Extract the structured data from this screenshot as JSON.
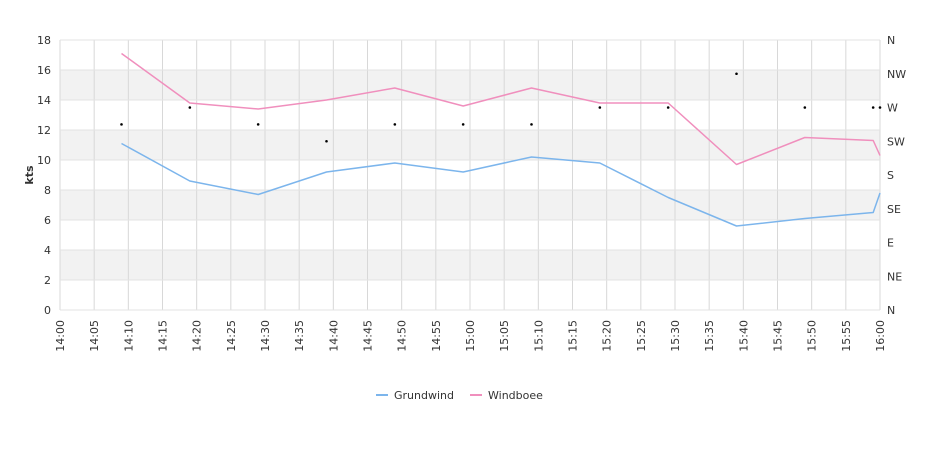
{
  "chart_data": {
    "type": "line",
    "title": "",
    "xlabel": "",
    "ylabel": "kts",
    "x_ticks": [
      "14:00",
      "14:05",
      "14:10",
      "14:15",
      "14:20",
      "14:25",
      "14:30",
      "14:35",
      "14:40",
      "14:45",
      "14:50",
      "14:55",
      "15:00",
      "15:05",
      "15:10",
      "15:15",
      "15:20",
      "15:25",
      "15:30",
      "15:35",
      "15:40",
      "15:45",
      "15:50",
      "15:55",
      "16:00"
    ],
    "x_range_minutes": [
      0,
      120
    ],
    "ylim": [
      0,
      18
    ],
    "y_ticks": [
      0,
      2,
      4,
      6,
      8,
      10,
      12,
      14,
      16,
      18
    ],
    "y2_ticks": [
      "N",
      "NE",
      "E",
      "SE",
      "S",
      "SW",
      "W",
      "NW",
      "N"
    ],
    "y2_range_degrees": [
      0,
      360
    ],
    "grid": true,
    "legend_position": "bottom",
    "series": [
      {
        "name": "Grundwind",
        "color": "#7cb5ec",
        "x_minutes": [
          9,
          19,
          29,
          39,
          49,
          59,
          69,
          79,
          89,
          99,
          109,
          119,
          120
        ],
        "values": [
          11.1,
          8.6,
          7.7,
          9.2,
          9.8,
          9.2,
          10.2,
          9.8,
          7.5,
          5.6,
          6.1,
          6.5,
          7.8
        ]
      },
      {
        "name": "Windboee",
        "color": "#f08fbd",
        "x_minutes": [
          9,
          19,
          29,
          39,
          49,
          59,
          69,
          79,
          89,
          99,
          109,
          119,
          120
        ],
        "values": [
          17.1,
          13.8,
          13.4,
          14.0,
          14.8,
          13.6,
          14.8,
          13.8,
          13.8,
          9.7,
          11.5,
          11.3,
          10.3
        ]
      }
    ],
    "direction_points": {
      "color": "#000000",
      "x_minutes": [
        9,
        19,
        29,
        39,
        49,
        59,
        69,
        79,
        89,
        99,
        109,
        119,
        120
      ],
      "degrees": [
        247.5,
        270,
        247.5,
        225,
        247.5,
        247.5,
        247.5,
        270,
        270,
        315,
        270,
        270,
        270
      ]
    }
  }
}
